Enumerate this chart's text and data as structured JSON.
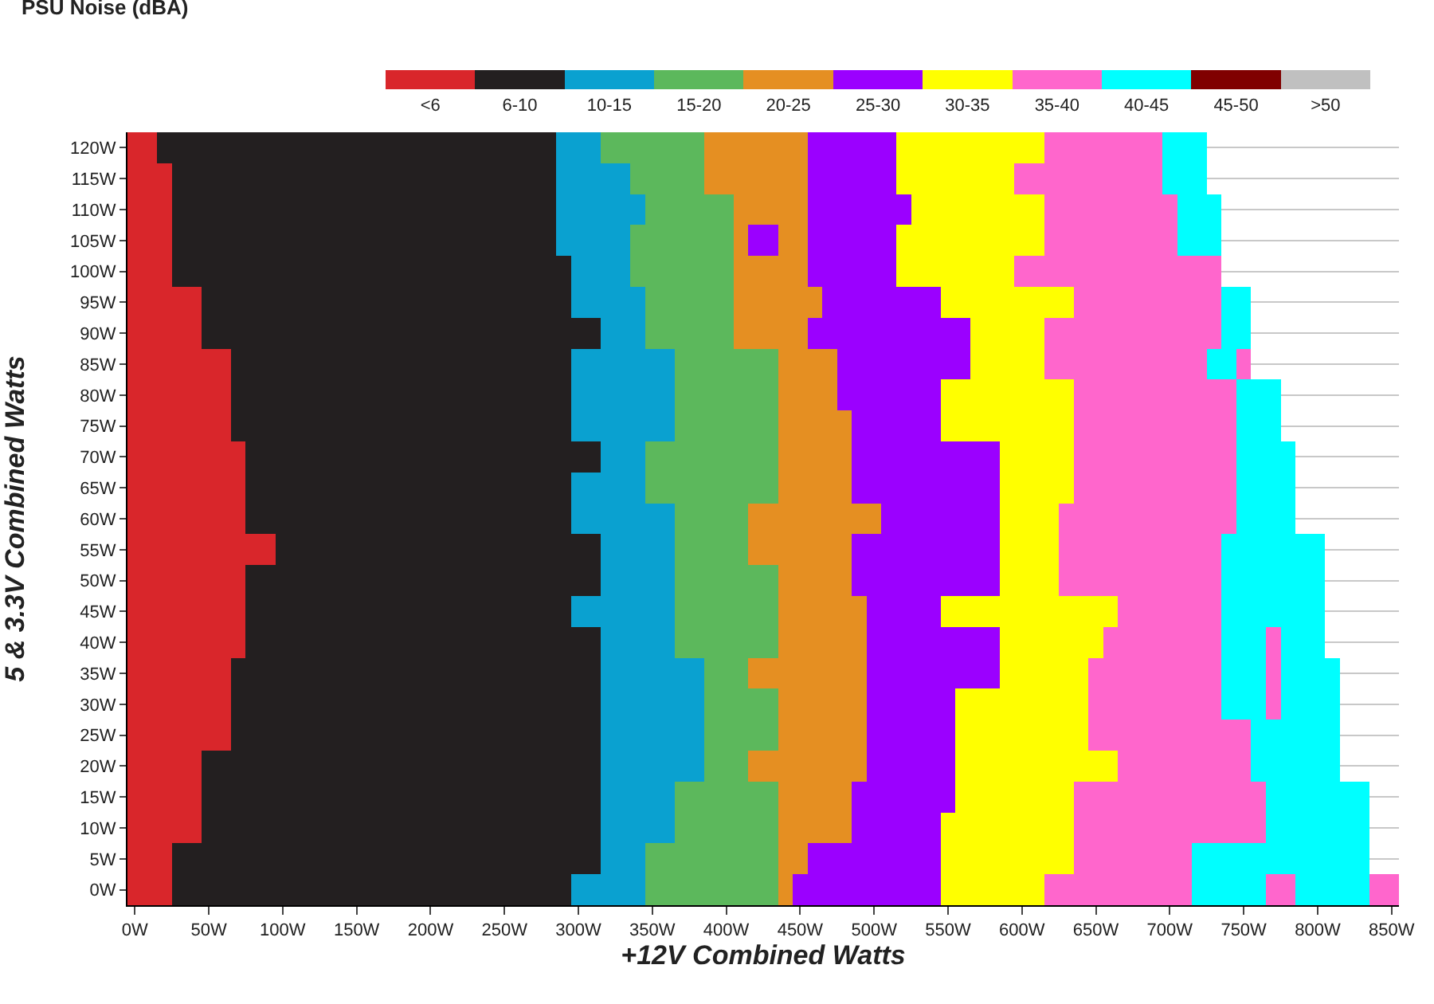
{
  "chart_data": {
    "type": "heatmap",
    "title": "PSU Noise (dBA)",
    "xlabel": "+12V Combined Watts",
    "ylabel": "5 & 3.3V Combined Watts",
    "x": [
      0,
      10,
      20,
      30,
      40,
      50,
      60,
      70,
      80,
      90,
      100,
      110,
      120,
      130,
      140,
      150,
      160,
      170,
      180,
      190,
      200,
      210,
      220,
      230,
      240,
      250,
      260,
      270,
      280,
      290,
      300,
      310,
      320,
      330,
      340,
      350,
      360,
      370,
      380,
      390,
      400,
      410,
      420,
      430,
      440,
      450,
      460,
      470,
      480,
      490,
      500,
      510,
      520,
      530,
      540,
      550,
      560,
      570,
      580,
      590,
      600,
      610,
      620,
      630,
      640,
      650,
      660,
      670,
      680,
      690,
      700,
      710,
      720,
      730,
      740,
      750,
      760,
      770,
      780,
      790,
      800,
      810,
      820,
      830,
      840,
      850
    ],
    "xlim": [
      -5,
      855
    ],
    "xticks": [
      {
        "value": 0,
        "label": "0W"
      },
      {
        "value": 50,
        "label": "50W"
      },
      {
        "value": 100,
        "label": "100W"
      },
      {
        "value": 150,
        "label": "150W"
      },
      {
        "value": 200,
        "label": "200W"
      },
      {
        "value": 250,
        "label": "250W"
      },
      {
        "value": 300,
        "label": "300W"
      },
      {
        "value": 350,
        "label": "350W"
      },
      {
        "value": 400,
        "label": "400W"
      },
      {
        "value": 450,
        "label": "450W"
      },
      {
        "value": 500,
        "label": "500W"
      },
      {
        "value": 550,
        "label": "550W"
      },
      {
        "value": 600,
        "label": "600W"
      },
      {
        "value": 650,
        "label": "650W"
      },
      {
        "value": 700,
        "label": "700W"
      },
      {
        "value": 750,
        "label": "750W"
      },
      {
        "value": 800,
        "label": "800W"
      },
      {
        "value": 850,
        "label": "850W"
      }
    ],
    "y_categories": [
      "120W",
      "115W",
      "110W",
      "105W",
      "100W",
      "95W",
      "90W",
      "85W",
      "80W",
      "75W",
      "70W",
      "65W",
      "60W",
      "55W",
      "50W",
      "45W",
      "40W",
      "35W",
      "30W",
      "25W",
      "20W",
      "15W",
      "10W",
      "5W",
      "0W"
    ],
    "colors": [
      "#d9262b",
      "#231f20",
      "#0aa1d0",
      "#5cb85c",
      "#e58f22",
      "#9b00ff",
      "#ffff00",
      "#ff66cc",
      "#00ffff",
      "#800000",
      "#c0c0c0"
    ],
    "clim": [
      -0.5,
      10.5
    ],
    "cticks": [
      {
        "value": 0,
        "label": "<6"
      },
      {
        "value": 1,
        "label": "6-10"
      },
      {
        "value": 2,
        "label": "10-15"
      },
      {
        "value": 3,
        "label": "15-20"
      },
      {
        "value": 4,
        "label": "20-25"
      },
      {
        "value": 5,
        "label": "25-30"
      },
      {
        "value": 6,
        "label": "30-35"
      },
      {
        "value": 7,
        "label": "35-40"
      },
      {
        "value": 8,
        "label": "40-45"
      },
      {
        "value": 9,
        "label": "45-50"
      },
      {
        "value": 10,
        "label": ">50"
      }
    ],
    "grid": "y",
    "cells": [
      [
        0,
        0,
        1,
        1,
        1,
        1,
        1,
        1,
        1,
        1,
        1,
        1,
        1,
        1,
        1,
        1,
        1,
        1,
        1,
        1,
        1,
        1,
        1,
        1,
        1,
        1,
        1,
        1,
        1,
        2,
        2,
        2,
        3,
        3,
        3,
        3,
        3,
        3,
        3,
        4,
        4,
        4,
        4,
        4,
        4,
        4,
        5,
        5,
        5,
        5,
        5,
        5,
        6,
        6,
        6,
        6,
        6,
        6,
        6,
        6,
        6,
        6,
        7,
        7,
        7,
        7,
        7,
        7,
        7,
        7,
        8,
        8,
        8,
        null,
        null,
        null,
        null,
        null,
        null,
        null,
        null,
        null,
        null,
        null,
        null,
        null
      ],
      [
        0,
        0,
        0,
        1,
        1,
        1,
        1,
        1,
        1,
        1,
        1,
        1,
        1,
        1,
        1,
        1,
        1,
        1,
        1,
        1,
        1,
        1,
        1,
        1,
        1,
        1,
        1,
        1,
        1,
        2,
        2,
        2,
        2,
        2,
        3,
        3,
        3,
        3,
        3,
        4,
        4,
        4,
        4,
        4,
        4,
        4,
        5,
        5,
        5,
        5,
        5,
        5,
        6,
        6,
        6,
        6,
        6,
        6,
        6,
        6,
        7,
        7,
        7,
        7,
        7,
        7,
        7,
        7,
        7,
        7,
        8,
        8,
        8,
        null,
        null,
        null,
        null,
        null,
        null,
        null,
        null,
        null,
        null,
        null,
        null,
        null
      ],
      [
        0,
        0,
        0,
        1,
        1,
        1,
        1,
        1,
        1,
        1,
        1,
        1,
        1,
        1,
        1,
        1,
        1,
        1,
        1,
        1,
        1,
        1,
        1,
        1,
        1,
        1,
        1,
        1,
        1,
        2,
        2,
        2,
        2,
        2,
        2,
        3,
        3,
        3,
        3,
        3,
        3,
        4,
        4,
        4,
        4,
        4,
        5,
        5,
        5,
        5,
        5,
        5,
        5,
        6,
        6,
        6,
        6,
        6,
        6,
        6,
        6,
        6,
        7,
        7,
        7,
        7,
        7,
        7,
        7,
        7,
        7,
        8,
        8,
        8,
        null,
        null,
        null,
        null,
        null,
        null,
        null,
        null,
        null,
        null,
        null,
        null
      ],
      [
        0,
        0,
        0,
        1,
        1,
        1,
        1,
        1,
        1,
        1,
        1,
        1,
        1,
        1,
        1,
        1,
        1,
        1,
        1,
        1,
        1,
        1,
        1,
        1,
        1,
        1,
        1,
        1,
        1,
        2,
        2,
        2,
        2,
        2,
        3,
        3,
        3,
        3,
        3,
        3,
        3,
        4,
        5,
        5,
        4,
        4,
        5,
        5,
        5,
        5,
        5,
        5,
        6,
        6,
        6,
        6,
        6,
        6,
        6,
        6,
        6,
        6,
        7,
        7,
        7,
        7,
        7,
        7,
        7,
        7,
        7,
        8,
        8,
        8,
        null,
        null,
        null,
        null,
        null,
        null,
        null,
        null,
        null,
        null,
        null,
        null
      ],
      [
        0,
        0,
        0,
        1,
        1,
        1,
        1,
        1,
        1,
        1,
        1,
        1,
        1,
        1,
        1,
        1,
        1,
        1,
        1,
        1,
        1,
        1,
        1,
        1,
        1,
        1,
        1,
        1,
        1,
        1,
        2,
        2,
        2,
        2,
        3,
        3,
        3,
        3,
        3,
        3,
        3,
        4,
        4,
        4,
        4,
        4,
        5,
        5,
        5,
        5,
        5,
        5,
        6,
        6,
        6,
        6,
        6,
        6,
        6,
        6,
        7,
        7,
        7,
        7,
        7,
        7,
        7,
        7,
        7,
        7,
        7,
        7,
        7,
        7,
        null,
        null,
        null,
        null,
        null,
        null,
        null,
        null,
        null,
        null,
        null,
        null
      ],
      [
        0,
        0,
        0,
        0,
        0,
        1,
        1,
        1,
        1,
        1,
        1,
        1,
        1,
        1,
        1,
        1,
        1,
        1,
        1,
        1,
        1,
        1,
        1,
        1,
        1,
        1,
        1,
        1,
        1,
        1,
        2,
        2,
        2,
        2,
        2,
        3,
        3,
        3,
        3,
        3,
        3,
        4,
        4,
        4,
        4,
        4,
        4,
        5,
        5,
        5,
        5,
        5,
        5,
        5,
        5,
        6,
        6,
        6,
        6,
        6,
        6,
        6,
        6,
        6,
        7,
        7,
        7,
        7,
        7,
        7,
        7,
        7,
        7,
        7,
        8,
        8,
        null,
        null,
        null,
        null,
        null,
        null,
        null,
        null,
        null,
        null
      ],
      [
        0,
        0,
        0,
        0,
        0,
        1,
        1,
        1,
        1,
        1,
        1,
        1,
        1,
        1,
        1,
        1,
        1,
        1,
        1,
        1,
        1,
        1,
        1,
        1,
        1,
        1,
        1,
        1,
        1,
        1,
        1,
        1,
        2,
        2,
        2,
        3,
        3,
        3,
        3,
        3,
        3,
        4,
        4,
        4,
        4,
        4,
        5,
        5,
        5,
        5,
        5,
        5,
        5,
        5,
        5,
        5,
        5,
        6,
        6,
        6,
        6,
        6,
        7,
        7,
        7,
        7,
        7,
        7,
        7,
        7,
        7,
        7,
        7,
        7,
        8,
        8,
        null,
        null,
        null,
        null,
        null,
        null,
        null,
        null,
        null,
        null
      ],
      [
        0,
        0,
        0,
        0,
        0,
        0,
        0,
        1,
        1,
        1,
        1,
        1,
        1,
        1,
        1,
        1,
        1,
        1,
        1,
        1,
        1,
        1,
        1,
        1,
        1,
        1,
        1,
        1,
        1,
        1,
        2,
        2,
        2,
        2,
        2,
        2,
        2,
        3,
        3,
        3,
        3,
        3,
        3,
        3,
        4,
        4,
        4,
        4,
        5,
        5,
        5,
        5,
        5,
        5,
        5,
        5,
        5,
        6,
        6,
        6,
        6,
        6,
        7,
        7,
        7,
        7,
        7,
        7,
        7,
        7,
        7,
        7,
        7,
        8,
        8,
        7,
        null,
        null,
        null,
        null,
        null,
        null,
        null,
        null,
        null,
        null
      ],
      [
        0,
        0,
        0,
        0,
        0,
        0,
        0,
        1,
        1,
        1,
        1,
        1,
        1,
        1,
        1,
        1,
        1,
        1,
        1,
        1,
        1,
        1,
        1,
        1,
        1,
        1,
        1,
        1,
        1,
        1,
        2,
        2,
        2,
        2,
        2,
        2,
        2,
        3,
        3,
        3,
        3,
        3,
        3,
        3,
        4,
        4,
        4,
        4,
        5,
        5,
        5,
        5,
        5,
        5,
        5,
        6,
        6,
        6,
        6,
        6,
        6,
        6,
        6,
        6,
        7,
        7,
        7,
        7,
        7,
        7,
        7,
        7,
        7,
        7,
        7,
        8,
        8,
        8,
        null,
        null,
        null,
        null,
        null,
        null,
        null,
        null
      ],
      [
        0,
        0,
        0,
        0,
        0,
        0,
        0,
        1,
        1,
        1,
        1,
        1,
        1,
        1,
        1,
        1,
        1,
        1,
        1,
        1,
        1,
        1,
        1,
        1,
        1,
        1,
        1,
        1,
        1,
        1,
        2,
        2,
        2,
        2,
        2,
        2,
        2,
        3,
        3,
        3,
        3,
        3,
        3,
        3,
        4,
        4,
        4,
        4,
        4,
        5,
        5,
        5,
        5,
        5,
        5,
        6,
        6,
        6,
        6,
        6,
        6,
        6,
        6,
        6,
        7,
        7,
        7,
        7,
        7,
        7,
        7,
        7,
        7,
        7,
        7,
        8,
        8,
        8,
        null,
        null,
        null,
        null,
        null,
        null,
        null,
        null
      ],
      [
        0,
        0,
        0,
        0,
        0,
        0,
        0,
        0,
        1,
        1,
        1,
        1,
        1,
        1,
        1,
        1,
        1,
        1,
        1,
        1,
        1,
        1,
        1,
        1,
        1,
        1,
        1,
        1,
        1,
        1,
        1,
        1,
        2,
        2,
        2,
        3,
        3,
        3,
        3,
        3,
        3,
        3,
        3,
        3,
        4,
        4,
        4,
        4,
        4,
        5,
        5,
        5,
        5,
        5,
        5,
        5,
        5,
        5,
        5,
        6,
        6,
        6,
        6,
        6,
        7,
        7,
        7,
        7,
        7,
        7,
        7,
        7,
        7,
        7,
        7,
        8,
        8,
        8,
        8,
        null,
        null,
        null,
        null,
        null,
        null,
        null
      ],
      [
        0,
        0,
        0,
        0,
        0,
        0,
        0,
        0,
        1,
        1,
        1,
        1,
        1,
        1,
        1,
        1,
        1,
        1,
        1,
        1,
        1,
        1,
        1,
        1,
        1,
        1,
        1,
        1,
        1,
        1,
        2,
        2,
        2,
        2,
        2,
        3,
        3,
        3,
        3,
        3,
        3,
        3,
        3,
        3,
        4,
        4,
        4,
        4,
        4,
        5,
        5,
        5,
        5,
        5,
        5,
        5,
        5,
        5,
        5,
        6,
        6,
        6,
        6,
        6,
        7,
        7,
        7,
        7,
        7,
        7,
        7,
        7,
        7,
        7,
        7,
        8,
        8,
        8,
        8,
        null,
        null,
        null,
        null,
        null,
        null,
        null
      ],
      [
        0,
        0,
        0,
        0,
        0,
        0,
        0,
        0,
        1,
        1,
        1,
        1,
        1,
        1,
        1,
        1,
        1,
        1,
        1,
        1,
        1,
        1,
        1,
        1,
        1,
        1,
        1,
        1,
        1,
        1,
        2,
        2,
        2,
        2,
        2,
        2,
        2,
        3,
        3,
        3,
        3,
        3,
        4,
        4,
        4,
        4,
        4,
        4,
        4,
        4,
        4,
        5,
        5,
        5,
        5,
        5,
        5,
        5,
        5,
        6,
        6,
        6,
        6,
        7,
        7,
        7,
        7,
        7,
        7,
        7,
        7,
        7,
        7,
        7,
        7,
        8,
        8,
        8,
        8,
        null,
        null,
        null,
        null,
        null,
        null,
        null
      ],
      [
        0,
        0,
        0,
        0,
        0,
        0,
        0,
        0,
        0,
        0,
        1,
        1,
        1,
        1,
        1,
        1,
        1,
        1,
        1,
        1,
        1,
        1,
        1,
        1,
        1,
        1,
        1,
        1,
        1,
        1,
        1,
        1,
        2,
        2,
        2,
        2,
        2,
        3,
        3,
        3,
        3,
        3,
        4,
        4,
        4,
        4,
        4,
        4,
        4,
        5,
        5,
        5,
        5,
        5,
        5,
        5,
        5,
        5,
        5,
        6,
        6,
        6,
        6,
        7,
        7,
        7,
        7,
        7,
        7,
        7,
        7,
        7,
        7,
        7,
        8,
        8,
        8,
        8,
        8,
        8,
        8,
        null,
        null,
        null,
        null,
        null
      ],
      [
        0,
        0,
        0,
        0,
        0,
        0,
        0,
        0,
        1,
        1,
        1,
        1,
        1,
        1,
        1,
        1,
        1,
        1,
        1,
        1,
        1,
        1,
        1,
        1,
        1,
        1,
        1,
        1,
        1,
        1,
        1,
        1,
        2,
        2,
        2,
        2,
        2,
        3,
        3,
        3,
        3,
        3,
        3,
        3,
        4,
        4,
        4,
        4,
        4,
        5,
        5,
        5,
        5,
        5,
        5,
        5,
        5,
        5,
        5,
        6,
        6,
        6,
        6,
        7,
        7,
        7,
        7,
        7,
        7,
        7,
        7,
        7,
        7,
        7,
        8,
        8,
        8,
        8,
        8,
        8,
        8,
        null,
        null,
        null,
        null,
        null
      ],
      [
        0,
        0,
        0,
        0,
        0,
        0,
        0,
        0,
        1,
        1,
        1,
        1,
        1,
        1,
        1,
        1,
        1,
        1,
        1,
        1,
        1,
        1,
        1,
        1,
        1,
        1,
        1,
        1,
        1,
        1,
        2,
        2,
        2,
        2,
        2,
        2,
        2,
        3,
        3,
        3,
        3,
        3,
        3,
        3,
        4,
        4,
        4,
        4,
        4,
        4,
        5,
        5,
        5,
        5,
        5,
        6,
        6,
        6,
        6,
        6,
        6,
        6,
        6,
        6,
        6,
        6,
        6,
        7,
        7,
        7,
        7,
        7,
        7,
        7,
        8,
        8,
        8,
        8,
        8,
        8,
        8,
        null,
        null,
        null,
        null,
        null
      ],
      [
        0,
        0,
        0,
        0,
        0,
        0,
        0,
        0,
        1,
        1,
        1,
        1,
        1,
        1,
        1,
        1,
        1,
        1,
        1,
        1,
        1,
        1,
        1,
        1,
        1,
        1,
        1,
        1,
        1,
        1,
        1,
        1,
        2,
        2,
        2,
        2,
        2,
        3,
        3,
        3,
        3,
        3,
        3,
        3,
        4,
        4,
        4,
        4,
        4,
        4,
        5,
        5,
        5,
        5,
        5,
        5,
        5,
        5,
        5,
        6,
        6,
        6,
        6,
        6,
        6,
        6,
        7,
        7,
        7,
        7,
        7,
        7,
        7,
        7,
        8,
        8,
        8,
        7,
        8,
        8,
        8,
        null,
        null,
        null,
        null,
        null
      ],
      [
        0,
        0,
        0,
        0,
        0,
        0,
        0,
        1,
        1,
        1,
        1,
        1,
        1,
        1,
        1,
        1,
        1,
        1,
        1,
        1,
        1,
        1,
        1,
        1,
        1,
        1,
        1,
        1,
        1,
        1,
        1,
        1,
        2,
        2,
        2,
        2,
        2,
        2,
        2,
        3,
        3,
        3,
        4,
        4,
        4,
        4,
        4,
        4,
        4,
        4,
        5,
        5,
        5,
        5,
        5,
        5,
        5,
        5,
        5,
        6,
        6,
        6,
        6,
        6,
        6,
        7,
        7,
        7,
        7,
        7,
        7,
        7,
        7,
        7,
        8,
        8,
        8,
        7,
        8,
        8,
        8,
        8,
        null,
        null,
        null,
        null
      ],
      [
        0,
        0,
        0,
        0,
        0,
        0,
        0,
        1,
        1,
        1,
        1,
        1,
        1,
        1,
        1,
        1,
        1,
        1,
        1,
        1,
        1,
        1,
        1,
        1,
        1,
        1,
        1,
        1,
        1,
        1,
        1,
        1,
        2,
        2,
        2,
        2,
        2,
        2,
        2,
        3,
        3,
        3,
        3,
        3,
        4,
        4,
        4,
        4,
        4,
        4,
        5,
        5,
        5,
        5,
        5,
        5,
        6,
        6,
        6,
        6,
        6,
        6,
        6,
        6,
        6,
        7,
        7,
        7,
        7,
        7,
        7,
        7,
        7,
        7,
        8,
        8,
        8,
        7,
        8,
        8,
        8,
        8,
        null,
        null,
        null,
        null
      ],
      [
        0,
        0,
        0,
        0,
        0,
        0,
        0,
        1,
        1,
        1,
        1,
        1,
        1,
        1,
        1,
        1,
        1,
        1,
        1,
        1,
        1,
        1,
        1,
        1,
        1,
        1,
        1,
        1,
        1,
        1,
        1,
        1,
        2,
        2,
        2,
        2,
        2,
        2,
        2,
        3,
        3,
        3,
        3,
        3,
        4,
        4,
        4,
        4,
        4,
        4,
        5,
        5,
        5,
        5,
        5,
        5,
        6,
        6,
        6,
        6,
        6,
        6,
        6,
        6,
        6,
        7,
        7,
        7,
        7,
        7,
        7,
        7,
        7,
        7,
        7,
        7,
        8,
        8,
        8,
        8,
        8,
        8,
        null,
        null,
        null,
        null
      ],
      [
        0,
        0,
        0,
        0,
        0,
        1,
        1,
        1,
        1,
        1,
        1,
        1,
        1,
        1,
        1,
        1,
        1,
        1,
        1,
        1,
        1,
        1,
        1,
        1,
        1,
        1,
        1,
        1,
        1,
        1,
        1,
        1,
        2,
        2,
        2,
        2,
        2,
        2,
        2,
        3,
        3,
        3,
        4,
        4,
        4,
        4,
        4,
        4,
        4,
        4,
        5,
        5,
        5,
        5,
        5,
        5,
        6,
        6,
        6,
        6,
        6,
        6,
        6,
        6,
        6,
        6,
        6,
        7,
        7,
        7,
        7,
        7,
        7,
        7,
        7,
        7,
        8,
        8,
        8,
        8,
        8,
        8,
        null,
        null,
        null,
        null
      ],
      [
        0,
        0,
        0,
        0,
        0,
        1,
        1,
        1,
        1,
        1,
        1,
        1,
        1,
        1,
        1,
        1,
        1,
        1,
        1,
        1,
        1,
        1,
        1,
        1,
        1,
        1,
        1,
        1,
        1,
        1,
        1,
        1,
        2,
        2,
        2,
        2,
        2,
        3,
        3,
        3,
        3,
        3,
        3,
        3,
        4,
        4,
        4,
        4,
        4,
        5,
        5,
        5,
        5,
        5,
        5,
        5,
        6,
        6,
        6,
        6,
        6,
        6,
        6,
        6,
        7,
        7,
        7,
        7,
        7,
        7,
        7,
        7,
        7,
        7,
        7,
        7,
        7,
        8,
        8,
        8,
        8,
        8,
        8,
        8,
        null,
        null
      ],
      [
        0,
        0,
        0,
        0,
        0,
        1,
        1,
        1,
        1,
        1,
        1,
        1,
        1,
        1,
        1,
        1,
        1,
        1,
        1,
        1,
        1,
        1,
        1,
        1,
        1,
        1,
        1,
        1,
        1,
        1,
        1,
        1,
        2,
        2,
        2,
        2,
        2,
        3,
        3,
        3,
        3,
        3,
        3,
        3,
        4,
        4,
        4,
        4,
        4,
        5,
        5,
        5,
        5,
        5,
        5,
        6,
        6,
        6,
        6,
        6,
        6,
        6,
        6,
        6,
        7,
        7,
        7,
        7,
        7,
        7,
        7,
        7,
        7,
        7,
        7,
        7,
        7,
        8,
        8,
        8,
        8,
        8,
        8,
        8,
        null,
        null
      ],
      [
        0,
        0,
        0,
        1,
        1,
        1,
        1,
        1,
        1,
        1,
        1,
        1,
        1,
        1,
        1,
        1,
        1,
        1,
        1,
        1,
        1,
        1,
        1,
        1,
        1,
        1,
        1,
        1,
        1,
        1,
        1,
        1,
        2,
        2,
        2,
        3,
        3,
        3,
        3,
        3,
        3,
        3,
        3,
        3,
        4,
        4,
        5,
        5,
        5,
        5,
        5,
        5,
        5,
        5,
        5,
        6,
        6,
        6,
        6,
        6,
        6,
        6,
        6,
        6,
        7,
        7,
        7,
        7,
        7,
        7,
        7,
        7,
        8,
        8,
        8,
        8,
        8,
        8,
        8,
        8,
        8,
        8,
        8,
        8,
        null,
        null
      ],
      [
        0,
        0,
        0,
        1,
        1,
        1,
        1,
        1,
        1,
        1,
        1,
        1,
        1,
        1,
        1,
        1,
        1,
        1,
        1,
        1,
        1,
        1,
        1,
        1,
        1,
        1,
        1,
        1,
        1,
        1,
        2,
        2,
        2,
        2,
        2,
        3,
        3,
        3,
        3,
        3,
        3,
        3,
        3,
        3,
        4,
        5,
        5,
        5,
        5,
        5,
        5,
        5,
        5,
        5,
        5,
        6,
        6,
        6,
        6,
        6,
        6,
        6,
        7,
        7,
        7,
        7,
        7,
        7,
        7,
        7,
        7,
        7,
        8,
        8,
        8,
        8,
        8,
        7,
        7,
        8,
        8,
        8,
        8,
        8,
        7,
        7
      ]
    ]
  }
}
